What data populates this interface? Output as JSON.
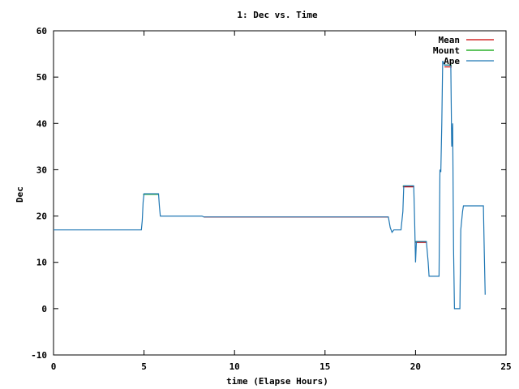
{
  "chart_data": {
    "type": "line",
    "title": "1: Dec vs. Time",
    "xlabel": "time (Elapse Hours)",
    "ylabel": "Dec",
    "xlim": [
      0,
      25
    ],
    "ylim": [
      -10,
      60
    ],
    "xticks": [
      0,
      5,
      10,
      15,
      20,
      25
    ],
    "yticks": [
      -10,
      0,
      10,
      20,
      30,
      40,
      50,
      60
    ],
    "grid": false,
    "legend_position": "top-right",
    "series": [
      {
        "name": "Mean",
        "color": "#cc0000",
        "segments": [
          [
            [
              8.3,
              19.8
            ],
            [
              18.5,
              19.8
            ]
          ],
          [
            [
              19.3,
              26.3
            ],
            [
              19.9,
              26.3
            ]
          ],
          [
            [
              20.0,
              14.3
            ],
            [
              20.6,
              14.3
            ]
          ],
          [
            [
              21.6,
              52.2
            ],
            [
              22.0,
              52.2
            ]
          ]
        ]
      },
      {
        "name": "Mount",
        "color": "#00a000",
        "segments": [
          [
            [
              4.95,
              24.7
            ],
            [
              5.8,
              24.7
            ]
          ],
          [
            [
              19.3,
              26.5
            ],
            [
              19.9,
              26.5
            ]
          ],
          [
            [
              20.0,
              14.5
            ],
            [
              20.6,
              14.5
            ]
          ],
          [
            [
              21.6,
              52.6
            ],
            [
              22.0,
              52.6
            ]
          ]
        ]
      },
      {
        "name": "Ape",
        "color": "#1f77b4",
        "points": [
          [
            0,
            17.0
          ],
          [
            4.85,
            17.0
          ],
          [
            4.9,
            19.0
          ],
          [
            4.95,
            23.0
          ],
          [
            5.0,
            24.8
          ],
          [
            5.8,
            24.8
          ],
          [
            5.85,
            22.0
          ],
          [
            5.9,
            20.0
          ],
          [
            8.2,
            20.0
          ],
          [
            8.3,
            19.8
          ],
          [
            18.5,
            19.8
          ],
          [
            18.6,
            17.5
          ],
          [
            18.7,
            16.5
          ],
          [
            18.8,
            17.0
          ],
          [
            19.2,
            17.0
          ],
          [
            19.3,
            21.0
          ],
          [
            19.35,
            26.5
          ],
          [
            19.9,
            26.5
          ],
          [
            19.95,
            19.0
          ],
          [
            20.0,
            10.0
          ],
          [
            20.05,
            14.5
          ],
          [
            20.6,
            14.5
          ],
          [
            20.7,
            10.0
          ],
          [
            20.75,
            7.0
          ],
          [
            21.3,
            7.0
          ],
          [
            21.35,
            30.0
          ],
          [
            21.4,
            29.5
          ],
          [
            21.45,
            40.0
          ],
          [
            21.5,
            53.5
          ],
          [
            21.6,
            52.6
          ],
          [
            21.95,
            52.6
          ],
          [
            22.0,
            35.0
          ],
          [
            22.05,
            40.0
          ],
          [
            22.1,
            13.0
          ],
          [
            22.15,
            0.0
          ],
          [
            22.45,
            0.0
          ],
          [
            22.5,
            17.0
          ],
          [
            22.6,
            21.0
          ],
          [
            22.65,
            22.2
          ],
          [
            23.75,
            22.2
          ],
          [
            23.8,
            12.0
          ],
          [
            23.85,
            3.0
          ]
        ]
      }
    ]
  }
}
